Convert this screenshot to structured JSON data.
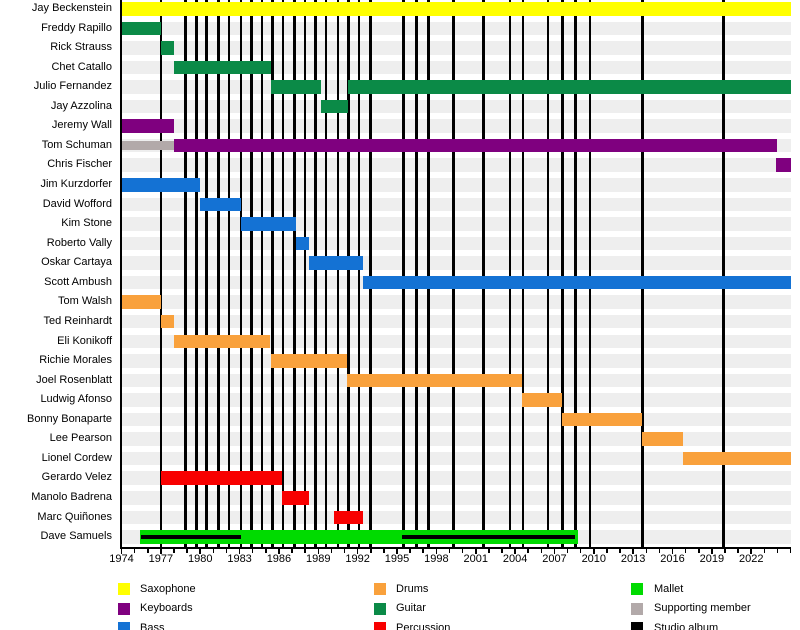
{
  "chart_data": {
    "type": "timeline",
    "title": "",
    "x_axis": {
      "start_year": 1974,
      "end_year": 2025,
      "label_interval_years": 3,
      "labeled_years": [
        1974,
        1977,
        1980,
        1983,
        1986,
        1989,
        1992,
        1995,
        1998,
        2001,
        2004,
        2007,
        2010,
        2013,
        2016,
        2019,
        2022
      ],
      "minor_tick_every_year": true
    },
    "colors": {
      "saxophone": "#FFFF00",
      "keyboards": "#7F007F",
      "bass": "#1472D4",
      "drums": "#F9A13C",
      "guitar": "#0B8A47",
      "percussion": "#F80000",
      "mallet": "#00DB00",
      "supporting": "#B2A9A9",
      "studio_album": "#000000",
      "row_background": "#EEEEEE"
    },
    "members": [
      {
        "name": "Jay Beckenstein",
        "segments": [
          {
            "role": "saxophone",
            "start": 1974.0,
            "end": 2025.0
          }
        ]
      },
      {
        "name": "Freddy Rapillo",
        "segments": [
          {
            "role": "guitar",
            "start": 1974.0,
            "end": 1977.0
          }
        ]
      },
      {
        "name": "Rick Strauss",
        "segments": [
          {
            "role": "guitar",
            "start": 1977.0,
            "end": 1978.0
          }
        ]
      },
      {
        "name": "Chet Catallo",
        "segments": [
          {
            "role": "guitar",
            "start": 1978.0,
            "end": 1985.4
          }
        ]
      },
      {
        "name": "Julio Fernandez",
        "segments": [
          {
            "role": "guitar",
            "start": 1985.4,
            "end": 1989.2
          },
          {
            "role": "guitar",
            "start": 1991.3,
            "end": 2025.0
          }
        ]
      },
      {
        "name": "Jay Azzolina",
        "segments": [
          {
            "role": "guitar",
            "start": 1989.2,
            "end": 1991.3
          }
        ]
      },
      {
        "name": "Jeremy Wall",
        "segments": [
          {
            "role": "keyboards",
            "start": 1974.0,
            "end": 1978.0
          }
        ]
      },
      {
        "name": "Tom Schuman",
        "segments": [
          {
            "role": "supporting",
            "start": 1974.0,
            "end": 1978.0
          },
          {
            "role": "keyboards",
            "start": 1978.0,
            "end": 2024.0
          }
        ]
      },
      {
        "name": "Chris Fischer",
        "segments": [
          {
            "role": "keyboards",
            "start": 2023.9,
            "end": 2025.0
          }
        ]
      },
      {
        "name": "Jim Kurzdorfer",
        "segments": [
          {
            "role": "bass",
            "start": 1974.0,
            "end": 1980.0
          }
        ]
      },
      {
        "name": "David Wofford",
        "segments": [
          {
            "role": "bass",
            "start": 1980.0,
            "end": 1983.1
          }
        ]
      },
      {
        "name": "Kim Stone",
        "segments": [
          {
            "role": "bass",
            "start": 1983.1,
            "end": 1987.3
          }
        ]
      },
      {
        "name": "Roberto Vally",
        "segments": [
          {
            "role": "bass",
            "start": 1987.3,
            "end": 1988.3
          }
        ]
      },
      {
        "name": "Oskar Cartaya",
        "segments": [
          {
            "role": "bass",
            "start": 1988.3,
            "end": 1992.4
          }
        ]
      },
      {
        "name": "Scott Ambush",
        "segments": [
          {
            "role": "bass",
            "start": 1992.4,
            "end": 2025.0
          }
        ]
      },
      {
        "name": "Tom Walsh",
        "segments": [
          {
            "role": "drums",
            "start": 1974.0,
            "end": 1977.0
          }
        ]
      },
      {
        "name": "Ted Reinhardt",
        "segments": [
          {
            "role": "drums",
            "start": 1977.0,
            "end": 1978.0
          }
        ]
      },
      {
        "name": "Eli Konikoff",
        "segments": [
          {
            "role": "drums",
            "start": 1978.0,
            "end": 1985.3
          }
        ]
      },
      {
        "name": "Richie Morales",
        "segments": [
          {
            "role": "drums",
            "start": 1985.4,
            "end": 1991.2
          }
        ]
      },
      {
        "name": "Joel Rosenblatt",
        "segments": [
          {
            "role": "drums",
            "start": 1991.2,
            "end": 2004.5
          }
        ]
      },
      {
        "name": "Ludwig Afonso",
        "segments": [
          {
            "role": "drums",
            "start": 2004.5,
            "end": 2007.6
          }
        ]
      },
      {
        "name": "Bonny Bonaparte",
        "segments": [
          {
            "role": "drums",
            "start": 2007.6,
            "end": 2013.7
          }
        ]
      },
      {
        "name": "Lee Pearson",
        "segments": [
          {
            "role": "drums",
            "start": 2013.7,
            "end": 2016.8
          }
        ]
      },
      {
        "name": "Lionel Cordew",
        "segments": [
          {
            "role": "drums",
            "start": 2016.8,
            "end": 2025.0
          }
        ]
      },
      {
        "name": "Gerardo Velez",
        "segments": [
          {
            "role": "percussion",
            "start": 1977.0,
            "end": 1986.2
          }
        ]
      },
      {
        "name": "Manolo Badrena",
        "segments": [
          {
            "role": "percussion",
            "start": 1986.2,
            "end": 1988.3
          }
        ]
      },
      {
        "name": "Marc Quiñones",
        "segments": [
          {
            "role": "percussion",
            "start": 1990.2,
            "end": 1992.4
          }
        ]
      },
      {
        "name": "Dave Samuels",
        "segments": [
          {
            "role": "mallet",
            "start": 1975.4,
            "end": 2008.8
          }
        ],
        "overlays": [
          {
            "role": "studio_album",
            "start": 1975.5,
            "end": 1983.1
          },
          {
            "role": "studio_album",
            "start": 1995.4,
            "end": 2008.6
          }
        ]
      }
    ],
    "album_lines_years": [
      1977.0,
      1978.9,
      1979.7,
      1980.5,
      1981.4,
      1982.2,
      1983.1,
      1983.9,
      1984.7,
      1985.5,
      1986.3,
      1987.2,
      1988.0,
      1988.8,
      1989.6,
      1990.5,
      1991.3,
      1992.1,
      1993.0,
      1995.5,
      1996.5,
      1997.4,
      1999.3,
      2001.6,
      2003.6,
      2004.6,
      2006.5,
      2007.6,
      2008.6,
      2009.7,
      2013.7,
      2019.9
    ],
    "legend": {
      "columns": [
        [
          {
            "label": "Saxophone",
            "color_key": "saxophone"
          },
          {
            "label": "Keyboards",
            "color_key": "keyboards"
          },
          {
            "label": "Bass",
            "color_key": "bass"
          }
        ],
        [
          {
            "label": "Drums",
            "color_key": "drums"
          },
          {
            "label": "Guitar",
            "color_key": "guitar"
          },
          {
            "label": "Percussion",
            "color_key": "percussion"
          }
        ],
        [
          {
            "label": "Mallet",
            "color_key": "mallet"
          },
          {
            "label": "Supporting member",
            "color_key": "supporting"
          },
          {
            "label": "Studio album",
            "color_key": "studio_album"
          }
        ]
      ]
    }
  }
}
